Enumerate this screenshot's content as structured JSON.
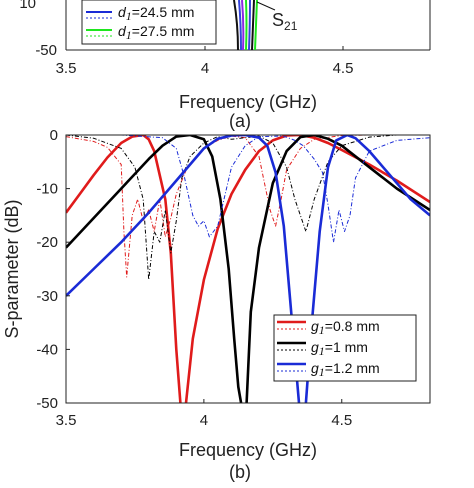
{
  "top_panel": {
    "yticks": [
      "-50"
    ],
    "top_tick_fragment": "10",
    "xticks": [
      "3.5",
      "4",
      "4.5"
    ],
    "xlabel": "Frequency (GHz)",
    "caption": "(a)",
    "legend": [
      {
        "var": "d",
        "sub": "1",
        "value": "=24.5 mm",
        "color": "#1a2bd6"
      },
      {
        "var": "d",
        "sub": "1",
        "value": "=27.5 mm",
        "color": "#1ee61e"
      }
    ],
    "annotation": {
      "main": "S",
      "sub": "21"
    },
    "colors": [
      "#3344dd",
      "#8a2be2",
      "#1ee61e",
      "#111111"
    ]
  },
  "chart_data": {
    "type": "line",
    "title": "",
    "xlabel": "Frequency (GHz)",
    "ylabel": "S-parameter (dB)",
    "xlim": [
      3.5,
      4.82
    ],
    "ylim": [
      -50,
      0
    ],
    "xticks": [
      "3.5",
      "4",
      "4.5"
    ],
    "yticks": [
      "0",
      "-10",
      "-20",
      "-30",
      "-40",
      "-50"
    ],
    "caption": "(b)",
    "legend_position": "bottom-right",
    "legend": [
      {
        "var": "g",
        "sub": "1",
        "value": "=0.8 mm",
        "color": "#e01b1b"
      },
      {
        "var": "g",
        "sub": "1",
        "value": "=1 mm",
        "color": "#000000"
      },
      {
        "var": "g",
        "sub": "1",
        "value": "=1.2 mm",
        "color": "#1a2bd6"
      }
    ],
    "series": [
      {
        "kind": "S21",
        "g": "0.8",
        "color": "#e01b1b",
        "x": [
          3.5,
          3.55,
          3.6,
          3.65,
          3.7,
          3.74,
          3.78,
          3.8,
          3.82,
          3.86,
          3.88,
          3.9,
          3.915
        ],
        "y": [
          -14.5,
          -11,
          -7.5,
          -4.2,
          -1.5,
          -0.3,
          0,
          -0.8,
          -3,
          -12,
          -22,
          -40,
          -50
        ]
      },
      {
        "kind": "S21",
        "g": "0.8",
        "color": "#e01b1b",
        "x": [
          3.935,
          3.96,
          4.0,
          4.05,
          4.1,
          4.15,
          4.2,
          4.25,
          4.3,
          4.35,
          4.4,
          4.45,
          4.5,
          4.6,
          4.7,
          4.82
        ],
        "y": [
          -50,
          -38,
          -27,
          -17.5,
          -11,
          -6.5,
          -3,
          -1,
          -0.1,
          0,
          -0.5,
          -1.5,
          -2.8,
          -5.5,
          -8.5,
          -12.5
        ]
      },
      {
        "kind": "S11",
        "g": "0.8",
        "color": "#e01b1b",
        "x": [
          3.5,
          3.6,
          3.65,
          3.7,
          3.71,
          3.72,
          3.74,
          3.76,
          3.78,
          3.8,
          3.82,
          3.84,
          3.86,
          3.88,
          3.9,
          3.94,
          4.0,
          4.05,
          4.1,
          4.15,
          4.2,
          4.22,
          4.24,
          4.26,
          4.28,
          4.3,
          4.35,
          4.4,
          4.5,
          4.6,
          4.7,
          4.82
        ],
        "y": [
          -0.3,
          -1.2,
          -2.3,
          -5.5,
          -18,
          -26.5,
          -15,
          -12,
          -16,
          -14,
          -18,
          -12,
          -19,
          -15.5,
          -11,
          -6,
          -2.5,
          -1,
          -0.2,
          -0.5,
          -4,
          -9,
          -14,
          -17,
          -12,
          -6.5,
          -2.5,
          -0.8,
          -0.1,
          0,
          0,
          0
        ]
      },
      {
        "kind": "S21",
        "g": "1",
        "color": "#000000",
        "x": [
          3.5,
          3.6,
          3.7,
          3.8,
          3.85,
          3.9,
          3.95,
          4.0,
          4.03,
          4.06,
          4.09,
          4.11,
          4.125,
          4.135
        ],
        "y": [
          -21,
          -15.5,
          -10,
          -4.5,
          -2,
          -0.3,
          0,
          -0.8,
          -4,
          -12,
          -25,
          -38,
          -47,
          -50
        ]
      },
      {
        "kind": "S21",
        "g": "1",
        "color": "#000000",
        "x": [
          4.155,
          4.17,
          4.2,
          4.25,
          4.3,
          4.35,
          4.4,
          4.45,
          4.5,
          4.6,
          4.7,
          4.82
        ],
        "y": [
          -50,
          -33,
          -21,
          -9,
          -3,
          -0.4,
          0,
          -0.7,
          -2,
          -6,
          -10,
          -14
        ]
      },
      {
        "kind": "S11",
        "g": "1",
        "color": "#000000",
        "x": [
          3.5,
          3.6,
          3.7,
          3.75,
          3.78,
          3.8,
          3.82,
          3.84,
          3.86,
          3.88,
          3.9,
          3.92,
          3.95,
          4.0,
          4.05,
          4.1,
          4.2,
          4.25,
          4.3,
          4.33,
          4.35,
          4.37,
          4.4,
          4.45,
          4.5,
          4.6,
          4.7,
          4.82
        ],
        "y": [
          0,
          -0.6,
          -2.5,
          -6,
          -12,
          -27,
          -18,
          -20,
          -14,
          -22,
          -16,
          -8,
          -4,
          -1.5,
          -0.3,
          -0.8,
          -0.2,
          -1.5,
          -6,
          -12,
          -15,
          -18,
          -12,
          -5,
          -2,
          -0.4,
          0,
          0
        ]
      },
      {
        "kind": "S21",
        "g": "1.2",
        "color": "#1a2bd6",
        "x": [
          3.5,
          3.6,
          3.7,
          3.8,
          3.9,
          3.95,
          4.0,
          4.05,
          4.1,
          4.15,
          4.2,
          4.23,
          4.26,
          4.29,
          4.32,
          4.345
        ],
        "y": [
          -30,
          -25,
          -20,
          -14.5,
          -8.5,
          -5.5,
          -2.5,
          -0.7,
          -0.1,
          0,
          -0.5,
          -2,
          -7,
          -17,
          -35,
          -50
        ]
      },
      {
        "kind": "S21",
        "g": "1.2",
        "color": "#1a2bd6",
        "x": [
          4.37,
          4.39,
          4.42,
          4.45,
          4.48,
          4.52,
          4.55,
          4.6,
          4.65,
          4.7,
          4.75,
          4.82
        ],
        "y": [
          -50,
          -36,
          -18,
          -6,
          -1,
          0,
          -0.6,
          -3,
          -6,
          -9,
          -12,
          -15
        ]
      },
      {
        "kind": "S11",
        "g": "1.2",
        "color": "#1a2bd6",
        "x": [
          3.5,
          3.7,
          3.85,
          3.9,
          3.93,
          3.96,
          3.98,
          4.0,
          4.02,
          4.05,
          4.1,
          4.15,
          4.2,
          4.28,
          4.3,
          4.33,
          4.36,
          4.4,
          4.43,
          4.45,
          4.47,
          4.49,
          4.51,
          4.53,
          4.55,
          4.6,
          4.7,
          4.82
        ],
        "y": [
          0,
          0,
          -0.5,
          -2.5,
          -8,
          -15,
          -17,
          -16,
          -19,
          -17,
          -6,
          -2,
          -0.3,
          -0.2,
          -0.4,
          -1,
          -2,
          -4.5,
          -7,
          -13,
          -20,
          -14,
          -18,
          -15,
          -8,
          -3,
          -1,
          -0.5
        ]
      }
    ]
  }
}
